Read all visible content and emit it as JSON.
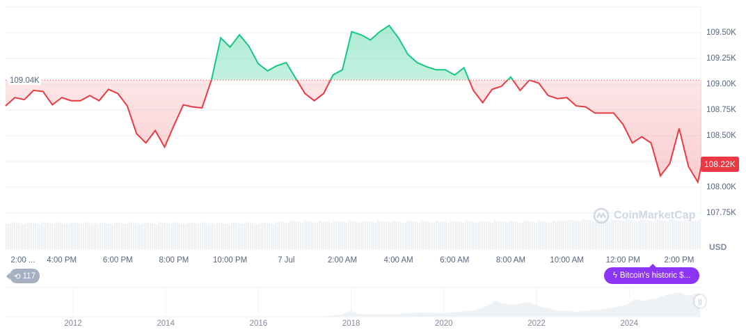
{
  "chart_data": {
    "type": "line",
    "title": "",
    "xlabel": "",
    "ylabel": "",
    "currency": "USD",
    "ylim": [
      107.6,
      109.7
    ],
    "y_ticks": [
      "109.50K",
      "109.25K",
      "109.00K",
      "108.75K",
      "108.50K",
      "108.00K",
      "107.75K"
    ],
    "y_tick_values": [
      109.5,
      109.25,
      109.0,
      108.75,
      108.5,
      108.0,
      107.75
    ],
    "x_ticks": [
      "2:00 ...",
      "4:00 PM",
      "6:00 PM",
      "8:00 PM",
      "10:00 PM",
      "7 Jul",
      "2:00 AM",
      "4:00 AM",
      "6:00 AM",
      "8:00 AM",
      "10:00 AM",
      "12:00 PM",
      "2:00 PM"
    ],
    "x_tick_times": [
      "Jul 6 14:00",
      "Jul 6 16:00",
      "Jul 6 18:00",
      "Jul 6 20:00",
      "Jul 6 22:00",
      "Jul 7 00:00",
      "Jul 7 02:00",
      "Jul 7 04:00",
      "Jul 7 06:00",
      "Jul 7 08:00",
      "Jul 7 10:00",
      "Jul 7 12:00",
      "Jul 7 14:00"
    ],
    "xlim": [
      "Jul 6 14:00",
      "Jul 7 14:50"
    ],
    "baseline": {
      "label": "109.04K",
      "value": 109.04
    },
    "current": {
      "label": "108.22K",
      "value": 108.22
    },
    "colors": {
      "up": "#16c784",
      "down": "#ea3943",
      "grid": "#eff2f5"
    },
    "grid": true,
    "x": [
      "Jul 6 14:00",
      "Jul 6 14:20",
      "Jul 6 14:40",
      "Jul 6 15:00",
      "Jul 6 15:20",
      "Jul 6 15:40",
      "Jul 6 16:00",
      "Jul 6 16:20",
      "Jul 6 16:40",
      "Jul 6 17:00",
      "Jul 6 17:20",
      "Jul 6 17:40",
      "Jul 6 18:00",
      "Jul 6 18:20",
      "Jul 6 18:40",
      "Jul 6 19:00",
      "Jul 6 19:20",
      "Jul 6 19:40",
      "Jul 6 20:00",
      "Jul 6 20:20",
      "Jul 6 20:40",
      "Jul 6 21:00",
      "Jul 6 21:20",
      "Jul 6 21:40",
      "Jul 6 22:00",
      "Jul 6 22:20",
      "Jul 6 22:40",
      "Jul 6 23:00",
      "Jul 6 23:20",
      "Jul 6 23:40",
      "Jul 7 00:00",
      "Jul 7 00:20",
      "Jul 7 00:40",
      "Jul 7 01:00",
      "Jul 7 01:20",
      "Jul 7 01:40",
      "Jul 7 02:00",
      "Jul 7 02:20",
      "Jul 7 02:40",
      "Jul 7 03:00",
      "Jul 7 03:20",
      "Jul 7 03:40",
      "Jul 7 04:00",
      "Jul 7 04:20",
      "Jul 7 04:40",
      "Jul 7 05:00",
      "Jul 7 05:20",
      "Jul 7 05:40",
      "Jul 7 06:00",
      "Jul 7 06:20",
      "Jul 7 06:40",
      "Jul 7 07:00",
      "Jul 7 07:20",
      "Jul 7 07:40",
      "Jul 7 08:00",
      "Jul 7 08:20",
      "Jul 7 08:40",
      "Jul 7 09:00",
      "Jul 7 09:20",
      "Jul 7 09:40",
      "Jul 7 10:00",
      "Jul 7 10:20",
      "Jul 7 10:40",
      "Jul 7 11:00",
      "Jul 7 11:20",
      "Jul 7 11:40",
      "Jul 7 12:00",
      "Jul 7 12:20",
      "Jul 7 12:40",
      "Jul 7 13:00",
      "Jul 7 13:20",
      "Jul 7 13:40",
      "Jul 7 14:00",
      "Jul 7 14:20",
      "Jul 7 14:40",
      "Jul 7 14:48"
    ],
    "y": [
      108.79,
      108.87,
      108.85,
      108.94,
      108.93,
      108.8,
      108.87,
      108.84,
      108.84,
      108.89,
      108.84,
      108.95,
      108.91,
      108.79,
      108.52,
      108.43,
      108.55,
      108.39,
      108.6,
      108.8,
      108.78,
      108.77,
      109.04,
      109.45,
      109.36,
      109.48,
      109.37,
      109.2,
      109.13,
      109.18,
      109.21,
      109.06,
      108.91,
      108.84,
      108.91,
      109.09,
      109.14,
      109.51,
      109.48,
      109.43,
      109.51,
      109.57,
      109.45,
      109.29,
      109.21,
      109.17,
      109.14,
      109.14,
      109.09,
      109.16,
      108.94,
      108.82,
      108.95,
      108.98,
      109.07,
      108.94,
      109.04,
      109.01,
      108.89,
      108.86,
      108.87,
      108.79,
      108.78,
      108.72,
      108.72,
      108.72,
      108.61,
      108.43,
      108.49,
      108.43,
      108.11,
      108.23,
      108.57,
      108.2,
      108.05,
      108.22
    ]
  },
  "navigator": {
    "year_labels": [
      "2012",
      "2014",
      "2016",
      "2018",
      "2020",
      "2022",
      "2024"
    ]
  },
  "annotations": {
    "count": "117",
    "count_icon": "history-icon",
    "news": "Bitcoin's historic $...",
    "news_icon": "lightning-icon"
  },
  "watermark": "CoinMarketCap"
}
